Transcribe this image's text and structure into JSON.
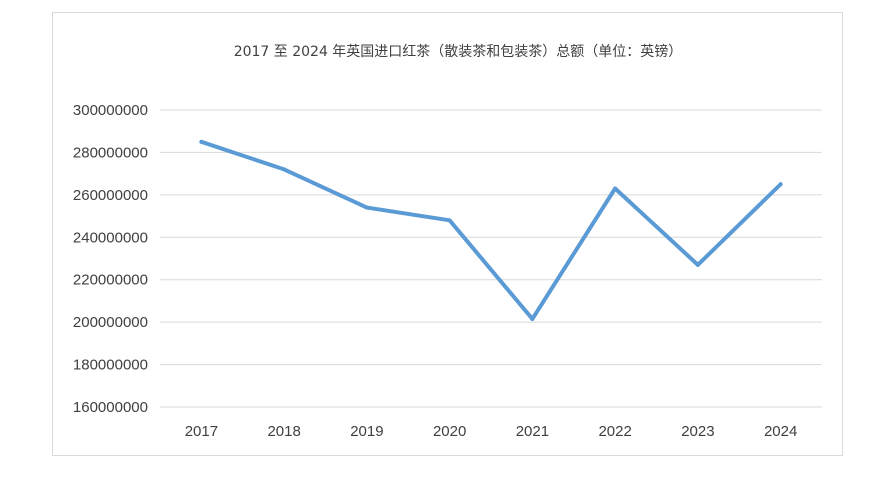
{
  "chart_data": {
    "type": "line",
    "title": "2017 至 2024 年英国进口红茶（散装茶和包装茶）总额（单位：英镑）",
    "xlabel": "",
    "ylabel": "",
    "categories": [
      "2017",
      "2018",
      "2019",
      "2020",
      "2021",
      "2022",
      "2023",
      "2024"
    ],
    "series": [
      {
        "values": [
          285000000,
          272000000,
          254000000,
          248000000,
          201500000,
          263000000,
          227000000,
          265000000
        ]
      }
    ],
    "ylim": [
      160000000,
      300000000
    ],
    "yticks": [
      {
        "value": 300000000,
        "label": "300000000"
      },
      {
        "value": 280000000,
        "label": "280000000"
      },
      {
        "value": 260000000,
        "label": "260000000"
      },
      {
        "value": 240000000,
        "label": "240000000"
      },
      {
        "value": 220000000,
        "label": "220000000"
      },
      {
        "value": 200000000,
        "label": "200000000"
      },
      {
        "value": 180000000,
        "label": "180000000"
      },
      {
        "value": 160000000,
        "label": "160000000"
      }
    ],
    "grid": true,
    "legend": "none",
    "line_color": "#5b9bd5"
  }
}
